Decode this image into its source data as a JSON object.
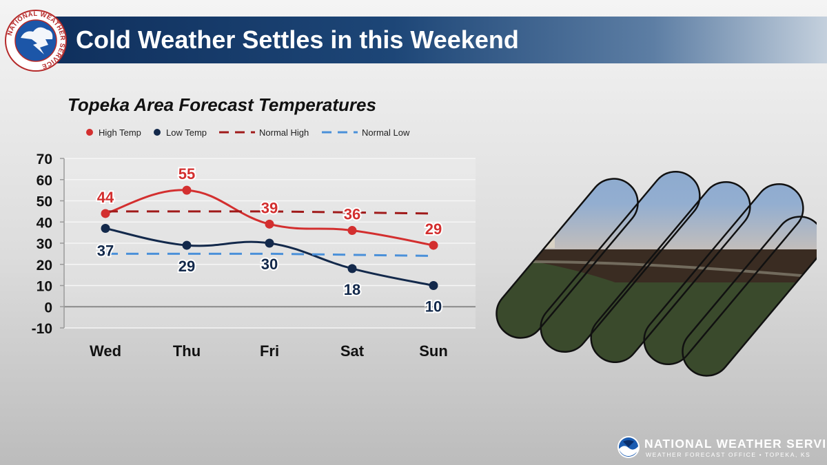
{
  "header": {
    "title": "Cold Weather Settles in this Weekend",
    "logo_text": "NATIONAL WEATHER SERVICE"
  },
  "chart_data": {
    "type": "line",
    "title": "Topeka Area Forecast Temperatures",
    "categories": [
      "Wed",
      "Thu",
      "Fri",
      "Sat",
      "Sun"
    ],
    "ylim": [
      -10,
      70
    ],
    "yticks": [
      70,
      60,
      50,
      40,
      30,
      20,
      10,
      0,
      -10
    ],
    "grid": true,
    "legend_position": "top",
    "series": [
      {
        "name": "High Temp",
        "style": "solid-marker",
        "color": "#d32f2f",
        "values": [
          44,
          55,
          39,
          36,
          29
        ],
        "labels": [
          "44",
          "55",
          "39",
          "36",
          "29"
        ]
      },
      {
        "name": "Low Temp",
        "style": "solid-marker",
        "color": "#13294b",
        "values": [
          37,
          29,
          30,
          18,
          10
        ],
        "labels": [
          "37",
          "29",
          "30",
          "18",
          "10"
        ]
      },
      {
        "name": "Normal High",
        "style": "dashed",
        "color": "#a01a1a",
        "values": [
          45,
          45,
          45,
          44.5,
          44
        ]
      },
      {
        "name": "Normal Low",
        "style": "dashed",
        "color": "#4a90d9",
        "values": [
          25,
          25,
          25,
          24.5,
          24
        ]
      }
    ]
  },
  "footer": {
    "agency": "NATIONAL WEATHER SERVICE",
    "office": "WEATHER FORECAST OFFICE • TOPEKA, KS"
  },
  "colors": {
    "header_dark": "#0f2f5c",
    "high_temp": "#d32f2f",
    "low_temp": "#13294b",
    "normal_high": "#a01a1a",
    "normal_low": "#4a90d9"
  },
  "icons": {
    "seal": "nws-seal-icon",
    "photo": "sunset-landscape-strips",
    "footer_logo": "noaa-logo-icon"
  }
}
